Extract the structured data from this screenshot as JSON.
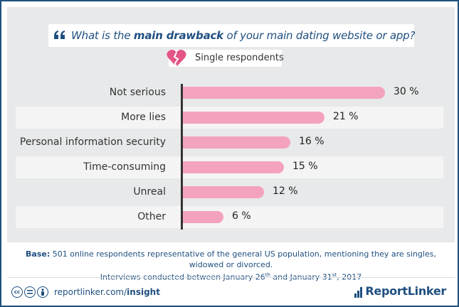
{
  "header": {
    "title_pre": "What is the ",
    "title_bold": "main drawback",
    "title_post": " of your main dating website or app?",
    "legend_label": "Single respondents",
    "colors": {
      "accent": "#1f4f80",
      "bar": "#f4a3be",
      "heart": "#e25586"
    }
  },
  "chart_data": {
    "type": "bar",
    "orientation": "horizontal",
    "title": "What is the main drawback of your main dating website or app?",
    "categories": [
      "Not serious",
      "More lies",
      "Personal information security",
      "Time-consuming",
      "Unreal",
      "Other"
    ],
    "series": [
      {
        "name": "Single respondents",
        "values": [
          30,
          21,
          16,
          15,
          12,
          6
        ],
        "labels": [
          "30 %",
          "21 %",
          "16 %",
          "15 %",
          "12 %",
          "6 %"
        ]
      }
    ],
    "xlim": [
      0,
      30
    ],
    "grid": false
  },
  "footer": {
    "base_label": "Base:",
    "base_line1": " 501 online respondents representative of the general US population, mentioning they are singles, widowed or divorced.",
    "base_line2_a": "Interviews conducted between January 26",
    "base_line2_sup1": "th",
    "base_line2_b": " and January 31",
    "base_line2_sup2": "st",
    "base_line2_c": ", 2017",
    "site_plain": "reportlinker.com/",
    "site_bold": "insight",
    "brand": "ReportLinker",
    "cc_icons": [
      "cc-icon",
      "equals-icon",
      "person-icon"
    ],
    "cc_text": "cc"
  }
}
